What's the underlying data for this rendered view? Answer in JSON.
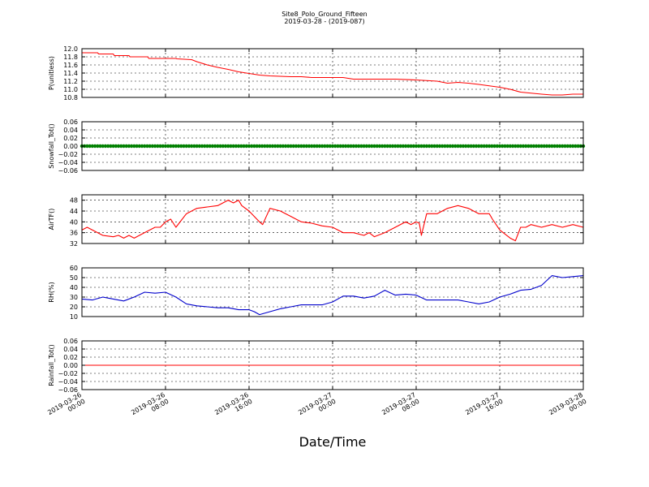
{
  "title": "Site8_Polo_Ground_Fifteen",
  "subtitle": "2019-03-28 - (2019-087)",
  "xlabel": "Date/Time",
  "x_ticks": [
    {
      "l1": "2019-03-26",
      "l2": "00:00"
    },
    {
      "l1": "2019-03-26",
      "l2": "08:00"
    },
    {
      "l1": "2019-03-26",
      "l2": "16:00"
    },
    {
      "l1": "2019-03-27",
      "l2": "00:00"
    },
    {
      "l1": "2019-03-27",
      "l2": "08:00"
    },
    {
      "l1": "2019-03-27",
      "l2": "16:00"
    },
    {
      "l1": "2019-03-28",
      "l2": "00:00"
    }
  ],
  "chart_data": [
    {
      "type": "line",
      "ylabel": "P(unitless)",
      "ylim": [
        10.8,
        12.0
      ],
      "yticks": [
        10.8,
        11.0,
        11.2,
        11.4,
        11.6,
        11.8,
        12.0
      ],
      "ytick_labels": [
        "10.8",
        "11.0",
        "11.2",
        "11.4",
        "11.6",
        "11.8",
        "12.0"
      ],
      "xlim_hours": [
        0,
        48
      ],
      "grid": true,
      "series": [
        {
          "color": "#ff0000",
          "x_hours": [
            0,
            1.5,
            1.6,
            3,
            3.1,
            4.5,
            4.6,
            6.3,
            6.4,
            8,
            9,
            9.1,
            10.5,
            11,
            12,
            13,
            14,
            15,
            16,
            17,
            18,
            20,
            21,
            22,
            25,
            26,
            28,
            30,
            32,
            34,
            35,
            36,
            37,
            38,
            40,
            41,
            42,
            44,
            45,
            46,
            47,
            48
          ],
          "values": [
            11.9,
            11.9,
            11.87,
            11.87,
            11.83,
            11.83,
            11.8,
            11.8,
            11.76,
            11.76,
            11.76,
            11.75,
            11.73,
            11.68,
            11.6,
            11.54,
            11.49,
            11.43,
            11.39,
            11.35,
            11.33,
            11.31,
            11.31,
            11.29,
            11.29,
            11.25,
            11.25,
            11.25,
            11.23,
            11.2,
            11.15,
            11.17,
            11.15,
            11.12,
            11.05,
            11.0,
            10.93,
            10.88,
            10.86,
            10.86,
            10.88,
            10.88
          ]
        }
      ]
    },
    {
      "type": "scatter",
      "ylabel": "Snowfall_Tot()",
      "ylim": [
        -0.06,
        0.06
      ],
      "yticks": [
        -0.06,
        -0.04,
        -0.02,
        0.0,
        0.02,
        0.04,
        0.06
      ],
      "ytick_labels": [
        "−0.06",
        "−0.04",
        "−0.02",
        "0.00",
        "0.02",
        "0.04",
        "0.06"
      ],
      "xlim_hours": [
        0,
        48
      ],
      "grid": true,
      "series": [
        {
          "color": "#008000",
          "x_start_hours": 0,
          "x_end_hours": 48,
          "x_step_hours": 0.25,
          "constant_value": 0.0
        }
      ]
    },
    {
      "type": "line",
      "ylabel": "AirTF()",
      "ylim": [
        32,
        50
      ],
      "yticks": [
        32,
        36,
        40,
        44,
        48
      ],
      "ytick_labels": [
        "32",
        "36",
        "40",
        "44",
        "48"
      ],
      "xlim_hours": [
        0,
        48
      ],
      "grid": true,
      "series": [
        {
          "color": "#ff0000",
          "x_hours": [
            0,
            0.5,
            1,
            2,
            3,
            3.5,
            4,
            4.5,
            5,
            6,
            7,
            7.5,
            8,
            8.5,
            9,
            10,
            10.5,
            11,
            12,
            13,
            14,
            14.5,
            15,
            15.3,
            16,
            17,
            17.3,
            18,
            19,
            20,
            21,
            22,
            23,
            24,
            25,
            26,
            27,
            27.5,
            28,
            29,
            30,
            30.5,
            31,
            31.5,
            32,
            32.3,
            32.5,
            33,
            34,
            35,
            36,
            37,
            37.5,
            38,
            39,
            39.3,
            40,
            41,
            41.5,
            42,
            42.5,
            43,
            44,
            45,
            46,
            47,
            48
          ],
          "values": [
            37,
            38,
            37,
            35,
            34.5,
            35,
            34,
            35,
            34,
            36,
            38,
            38,
            40,
            41,
            38,
            43,
            44,
            45,
            45.5,
            46,
            48,
            47,
            48,
            46,
            44,
            40,
            39,
            45,
            44,
            42,
            40,
            39.5,
            38.5,
            38,
            36,
            36,
            35,
            36,
            34.5,
            36,
            38,
            39,
            40,
            39,
            40,
            39.5,
            35,
            43,
            43,
            45,
            46,
            45,
            44,
            43,
            43,
            41,
            37,
            34,
            33,
            38,
            38,
            39,
            38,
            39,
            38,
            39,
            38
          ]
        }
      ]
    },
    {
      "type": "line",
      "ylabel": "RH(%)",
      "ylim": [
        10,
        60
      ],
      "yticks": [
        10,
        20,
        30,
        40,
        50,
        60
      ],
      "ytick_labels": [
        "10",
        "20",
        "30",
        "40",
        "50",
        "60"
      ],
      "xlim_hours": [
        0,
        48
      ],
      "grid": true,
      "series": [
        {
          "color": "#0000cc",
          "x_hours": [
            0,
            1,
            2,
            3,
            4,
            5,
            6,
            7,
            8,
            9,
            10,
            11,
            12,
            13,
            14,
            15,
            16,
            16.5,
            17,
            18,
            19,
            20,
            21,
            22,
            23,
            24,
            25,
            26,
            27,
            28,
            29,
            30,
            31,
            32,
            33,
            34,
            35,
            36,
            37,
            38,
            39,
            40,
            41,
            42,
            43,
            44,
            45,
            46,
            47,
            48
          ],
          "values": [
            28,
            27,
            30,
            28,
            26,
            30,
            35,
            34,
            35,
            30,
            23,
            21,
            20,
            19,
            19,
            17,
            17,
            15,
            12,
            15,
            18,
            20,
            22,
            22,
            22,
            25,
            31,
            31,
            29,
            31,
            37,
            32,
            33,
            32,
            27,
            27,
            27,
            27,
            25,
            23,
            25,
            30,
            33,
            37,
            38,
            42,
            52,
            50,
            51,
            52
          ]
        }
      ]
    },
    {
      "type": "line",
      "ylabel": "Rainfall_Tot()",
      "ylim": [
        -0.06,
        0.06
      ],
      "yticks": [
        -0.06,
        -0.04,
        -0.02,
        0.0,
        0.02,
        0.04,
        0.06
      ],
      "ytick_labels": [
        "−0.06",
        "−0.04",
        "−0.02",
        "0.00",
        "0.02",
        "0.04",
        "0.06"
      ],
      "xlim_hours": [
        0,
        48
      ],
      "grid": true,
      "series": [
        {
          "color": "#ff0000",
          "x_hours": [
            0,
            48
          ],
          "values": [
            0,
            0
          ]
        }
      ]
    }
  ]
}
